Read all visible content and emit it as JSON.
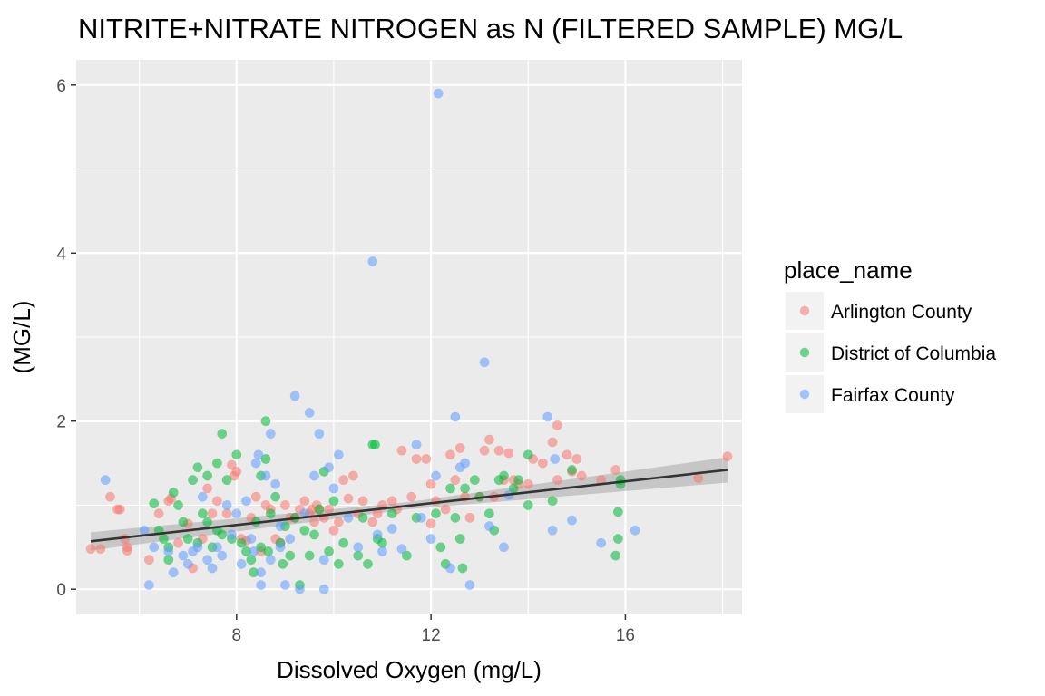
{
  "chart_data": {
    "type": "scatter",
    "title": "NITRITE+NITRATE NITROGEN as N (FILTERED SAMPLE) MG/L",
    "xlabel": "Dissolved Oxygen (mg/L)",
    "ylabel": "(MG/L)",
    "xlim": [
      4.7,
      18.4
    ],
    "ylim": [
      -0.3,
      6.3
    ],
    "x_ticks": [
      8,
      12,
      16
    ],
    "y_ticks": [
      0,
      2,
      4,
      6
    ],
    "grid": true,
    "legend": {
      "title": "place_name",
      "position": "right"
    },
    "series": [
      {
        "name": "Arlington County",
        "color": "#F8766D",
        "points": [
          [
            5.0,
            0.48
          ],
          [
            5.2,
            0.48
          ],
          [
            5.4,
            1.1
          ],
          [
            5.55,
            0.95
          ],
          [
            5.6,
            0.95
          ],
          [
            5.7,
            0.6
          ],
          [
            5.75,
            0.5
          ],
          [
            5.75,
            0.46
          ],
          [
            6.2,
            0.35
          ],
          [
            6.4,
            0.9
          ],
          [
            6.6,
            1.05
          ],
          [
            6.65,
            1.08
          ],
          [
            6.8,
            0.55
          ],
          [
            7.0,
            0.78
          ],
          [
            7.1,
            0.25
          ],
          [
            7.3,
            0.6
          ],
          [
            7.4,
            1.2
          ],
          [
            7.5,
            0.9
          ],
          [
            7.6,
            1.05
          ],
          [
            7.8,
            0.9
          ],
          [
            7.9,
            1.48
          ],
          [
            7.95,
            1.35
          ],
          [
            8.0,
            1.4
          ],
          [
            8.1,
            0.6
          ],
          [
            8.2,
            0.58
          ],
          [
            8.3,
            0.85
          ],
          [
            8.4,
            1.1
          ],
          [
            8.5,
            0.45
          ],
          [
            8.6,
            1.0
          ],
          [
            8.7,
            0.95
          ],
          [
            8.8,
            0.6
          ],
          [
            8.9,
            0.55
          ],
          [
            9.0,
            1.0
          ],
          [
            9.1,
            0.85
          ],
          [
            9.2,
            0.85
          ],
          [
            9.3,
            0.95
          ],
          [
            9.4,
            1.05
          ],
          [
            9.5,
            0.9
          ],
          [
            9.55,
            0.95
          ],
          [
            9.6,
            0.8
          ],
          [
            9.65,
            1.0
          ],
          [
            9.7,
            0.95
          ],
          [
            9.8,
            0.85
          ],
          [
            9.9,
            0.95
          ],
          [
            10.0,
            0.7
          ],
          [
            10.1,
            0.8
          ],
          [
            10.2,
            1.3
          ],
          [
            10.3,
            1.08
          ],
          [
            10.4,
            1.35
          ],
          [
            10.5,
            0.9
          ],
          [
            10.6,
            1.05
          ],
          [
            10.8,
            0.8
          ],
          [
            10.9,
            0.9
          ],
          [
            11.0,
            1.0
          ],
          [
            11.2,
            1.05
          ],
          [
            11.3,
            0.95
          ],
          [
            11.4,
            1.65
          ],
          [
            11.6,
            1.1
          ],
          [
            11.7,
            1.55
          ],
          [
            11.9,
            1.55
          ],
          [
            12.0,
            0.78
          ],
          [
            12.0,
            1.25
          ],
          [
            12.1,
            1.05
          ],
          [
            12.3,
            0.95
          ],
          [
            12.4,
            1.6
          ],
          [
            12.5,
            1.3
          ],
          [
            12.6,
            1.68
          ],
          [
            12.7,
            1.1
          ],
          [
            12.8,
            0.85
          ],
          [
            13.0,
            1.1
          ],
          [
            13.1,
            1.65
          ],
          [
            13.2,
            1.78
          ],
          [
            13.3,
            1.1
          ],
          [
            13.4,
            1.65
          ],
          [
            13.5,
            1.3
          ],
          [
            13.6,
            1.62
          ],
          [
            13.7,
            1.3
          ],
          [
            13.8,
            1.25
          ],
          [
            14.0,
            1.25
          ],
          [
            14.1,
            1.55
          ],
          [
            14.3,
            1.5
          ],
          [
            14.5,
            1.75
          ],
          [
            14.6,
            1.95
          ],
          [
            14.6,
            1.3
          ],
          [
            14.8,
            1.6
          ],
          [
            14.9,
            1.4
          ],
          [
            15.0,
            1.55
          ],
          [
            15.1,
            1.35
          ],
          [
            15.5,
            1.3
          ],
          [
            15.8,
            1.42
          ],
          [
            17.5,
            1.32
          ],
          [
            18.1,
            1.58
          ]
        ]
      },
      {
        "name": "District of Columbia",
        "color": "#00BA38",
        "points": [
          [
            6.3,
            1.02
          ],
          [
            6.4,
            0.7
          ],
          [
            6.5,
            0.6
          ],
          [
            6.6,
            0.35
          ],
          [
            6.6,
            0.5
          ],
          [
            6.7,
            1.15
          ],
          [
            6.8,
            1.0
          ],
          [
            6.9,
            0.8
          ],
          [
            7.0,
            0.6
          ],
          [
            7.1,
            1.3
          ],
          [
            7.2,
            1.45
          ],
          [
            7.2,
            0.55
          ],
          [
            7.3,
            0.9
          ],
          [
            7.4,
            1.35
          ],
          [
            7.4,
            0.8
          ],
          [
            7.5,
            0.5
          ],
          [
            7.6,
            1.5
          ],
          [
            7.6,
            0.7
          ],
          [
            7.7,
            1.85
          ],
          [
            7.7,
            0.65
          ],
          [
            7.8,
            1.3
          ],
          [
            7.9,
            0.6
          ],
          [
            8.0,
            1.6
          ],
          [
            8.1,
            0.55
          ],
          [
            8.2,
            0.45
          ],
          [
            8.3,
            0.35
          ],
          [
            8.35,
            0.2
          ],
          [
            8.4,
            0.8
          ],
          [
            8.5,
            1.35
          ],
          [
            8.5,
            0.5
          ],
          [
            8.6,
            2.0
          ],
          [
            8.6,
            1.55
          ],
          [
            8.65,
            0.45
          ],
          [
            8.7,
            0.9
          ],
          [
            8.8,
            1.1
          ],
          [
            8.9,
            0.55
          ],
          [
            8.95,
            0.3
          ],
          [
            9.0,
            0.75
          ],
          [
            9.1,
            0.4
          ],
          [
            9.2,
            0.85
          ],
          [
            9.3,
            0.05
          ],
          [
            9.4,
            0.7
          ],
          [
            9.5,
            0.4
          ],
          [
            9.6,
            0.65
          ],
          [
            9.7,
            0.95
          ],
          [
            9.8,
            1.4
          ],
          [
            9.9,
            0.45
          ],
          [
            10.0,
            1.05
          ],
          [
            10.1,
            0.3
          ],
          [
            10.2,
            0.55
          ],
          [
            10.5,
            0.4
          ],
          [
            10.6,
            0.85
          ],
          [
            10.7,
            0.3
          ],
          [
            10.8,
            1.72
          ],
          [
            10.85,
            1.72
          ],
          [
            10.9,
            0.6
          ],
          [
            11.0,
            0.55
          ],
          [
            11.2,
            0.9
          ],
          [
            11.5,
            0.4
          ],
          [
            11.7,
            0.85
          ],
          [
            12.1,
            0.9
          ],
          [
            12.2,
            0.5
          ],
          [
            12.3,
            0.3
          ],
          [
            12.4,
            1.2
          ],
          [
            12.5,
            0.85
          ],
          [
            12.6,
            0.6
          ],
          [
            12.65,
            0.25
          ],
          [
            12.7,
            1.2
          ],
          [
            12.9,
            1.3
          ],
          [
            13.0,
            1.1
          ],
          [
            13.2,
            0.9
          ],
          [
            13.3,
            0.7
          ],
          [
            13.4,
            1.3
          ],
          [
            13.5,
            1.35
          ],
          [
            13.7,
            1.2
          ],
          [
            13.8,
            1.3
          ],
          [
            14.0,
            1.0
          ],
          [
            14.0,
            1.6
          ],
          [
            14.5,
            1.05
          ],
          [
            14.9,
            1.42
          ],
          [
            15.8,
            0.4
          ],
          [
            15.85,
            0.6
          ],
          [
            15.9,
            1.3
          ],
          [
            15.9,
            1.25
          ],
          [
            15.85,
            0.92
          ]
        ]
      },
      {
        "name": "Fairfax County",
        "color": "#619CFF",
        "points": [
          [
            5.3,
            1.3
          ],
          [
            6.1,
            0.7
          ],
          [
            6.2,
            0.05
          ],
          [
            6.3,
            0.5
          ],
          [
            6.6,
            0.45
          ],
          [
            6.7,
            0.2
          ],
          [
            6.9,
            0.4
          ],
          [
            7.0,
            0.3
          ],
          [
            7.1,
            0.45
          ],
          [
            7.2,
            0.5
          ],
          [
            7.3,
            1.1
          ],
          [
            7.4,
            0.35
          ],
          [
            7.5,
            0.25
          ],
          [
            7.6,
            0.5
          ],
          [
            7.7,
            0.4
          ],
          [
            7.8,
            1.0
          ],
          [
            7.9,
            0.65
          ],
          [
            8.0,
            0.9
          ],
          [
            8.1,
            0.3
          ],
          [
            8.2,
            1.05
          ],
          [
            8.3,
            0.6
          ],
          [
            8.35,
            0.45
          ],
          [
            8.4,
            1.5
          ],
          [
            8.45,
            1.6
          ],
          [
            8.5,
            0.2
          ],
          [
            8.5,
            0.05
          ],
          [
            8.6,
            1.35
          ],
          [
            8.7,
            1.85
          ],
          [
            8.7,
            0.35
          ],
          [
            8.8,
            1.25
          ],
          [
            8.9,
            0.75
          ],
          [
            8.9,
            0.5
          ],
          [
            9.0,
            0.05
          ],
          [
            9.1,
            0.6
          ],
          [
            9.2,
            2.3
          ],
          [
            9.3,
            0.0
          ],
          [
            9.4,
            0.9
          ],
          [
            9.5,
            2.1
          ],
          [
            9.6,
            1.35
          ],
          [
            9.7,
            1.85
          ],
          [
            9.8,
            0.35
          ],
          [
            9.8,
            0.0
          ],
          [
            9.9,
            1.45
          ],
          [
            10.0,
            1.2
          ],
          [
            10.1,
            1.6
          ],
          [
            10.3,
            0.85
          ],
          [
            10.5,
            0.5
          ],
          [
            10.8,
            3.9
          ],
          [
            10.9,
            0.65
          ],
          [
            11.0,
            0.45
          ],
          [
            11.2,
            0.72
          ],
          [
            11.4,
            0.48
          ],
          [
            11.7,
            1.72
          ],
          [
            11.8,
            0.85
          ],
          [
            12.0,
            0.6
          ],
          [
            12.1,
            1.35
          ],
          [
            12.15,
            5.9
          ],
          [
            12.4,
            0.25
          ],
          [
            12.5,
            2.05
          ],
          [
            12.6,
            1.45
          ],
          [
            12.7,
            1.5
          ],
          [
            12.8,
            0.05
          ],
          [
            13.1,
            2.7
          ],
          [
            13.2,
            0.75
          ],
          [
            13.5,
            0.5
          ],
          [
            13.6,
            1.12
          ],
          [
            14.4,
            2.05
          ],
          [
            14.5,
            0.7
          ],
          [
            14.55,
            1.55
          ],
          [
            14.9,
            0.82
          ],
          [
            15.5,
            0.55
          ],
          [
            16.2,
            0.7
          ]
        ]
      }
    ],
    "trend_line": {
      "x": [
        5.0,
        18.1
      ],
      "y": [
        0.57,
        1.42
      ],
      "color": "#333333"
    }
  }
}
